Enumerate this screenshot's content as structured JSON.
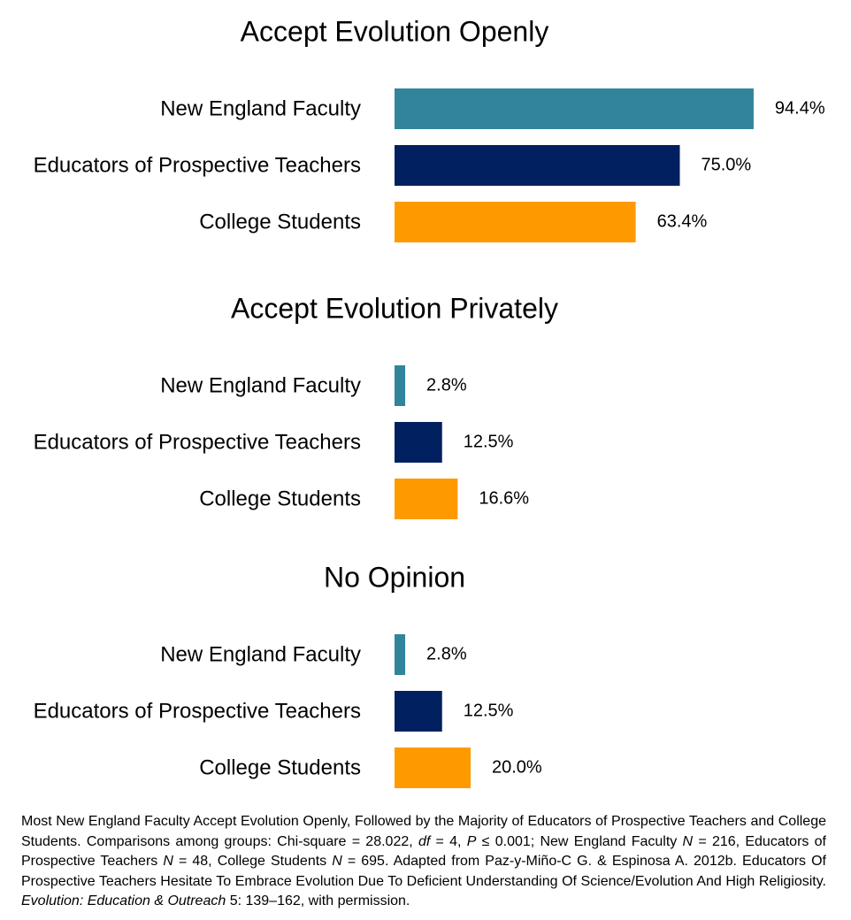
{
  "chart_data": [
    {
      "type": "bar",
      "orientation": "horizontal",
      "title": "Accept  Evolution Openly",
      "categories": [
        "New England Faculty",
        "Educators of Prospective Teachers",
        "College Students"
      ],
      "values": [
        94.4,
        75.0,
        63.4
      ],
      "value_labels": [
        "94.4%",
        "75.0%",
        "63.4%"
      ],
      "colors": [
        "#31849b",
        "#002060",
        "#ff9900"
      ]
    },
    {
      "type": "bar",
      "orientation": "horizontal",
      "title": "Accept Evolution Privately",
      "categories": [
        "New England Faculty",
        "Educators of Prospective Teachers",
        "College Students"
      ],
      "values": [
        2.8,
        12.5,
        16.6
      ],
      "value_labels": [
        "2.8%",
        "12.5%",
        "16.6%"
      ],
      "colors": [
        "#31849b",
        "#002060",
        "#ff9900"
      ]
    },
    {
      "type": "bar",
      "orientation": "horizontal",
      "title": "No Opinion",
      "categories": [
        "New England Faculty",
        "Educators of Prospective Teachers",
        "College Students"
      ],
      "values": [
        2.8,
        12.5,
        20.0
      ],
      "value_labels": [
        "2.8%",
        "12.5%",
        "20.0%"
      ],
      "colors": [
        "#31849b",
        "#002060",
        "#ff9900"
      ]
    }
  ],
  "caption": [
    "Most New England Faculty Accept Evolution Openly, Followed by the Majority of Educators of Prospective Teachers and College Students. Comparisons among groups: Chi-square = 28.022, ",
    "df",
    " = 4, ",
    "P",
    " ≤ 0.001; New England Faculty ",
    "N",
    " = 216, Educators of Prospective Teachers ",
    "N",
    " = 48, College Students ",
    "N",
    " = 695. Adapted from Paz-y-Miño-C G. & Espinosa A. 2012b. Educators Of Prospective Teachers Hesitate To Embrace Evolution Due To Deficient Understanding Of Science/Evolution And High Religiosity. ",
    "Evolution: Education & Outreach",
    " 5: 139–162, with permission."
  ]
}
